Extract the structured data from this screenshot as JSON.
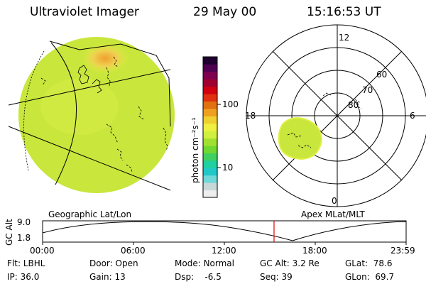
{
  "header": {
    "instrument": "Ultraviolet Imager",
    "date": "29 May 00",
    "time": "15:16:53 UT"
  },
  "colorbar": {
    "unit_label": "photon cm⁻²s⁻¹",
    "ticks": [
      "100",
      "10"
    ],
    "colors": [
      "#eeeeee",
      "#c8d8d8",
      "#70d8d8",
      "#20c8c8",
      "#20d0a0",
      "#40d060",
      "#70d830",
      "#a0e030",
      "#d0f040",
      "#f0f040",
      "#f0d030",
      "#f0a020",
      "#e07010",
      "#e03010",
      "#d00010",
      "#a00030",
      "#800050",
      "#500050",
      "#200030"
    ]
  },
  "geo_panel": {
    "label": "Geographic Lat/Lon",
    "fill_color": "#c8e63c"
  },
  "apex_panel": {
    "label": "Apex MLat/MLT",
    "lat_labels": [
      "60",
      "70",
      "80"
    ],
    "mlt_labels": [
      "12",
      "18",
      "6",
      "0"
    ]
  },
  "altitude_plot": {
    "y_label": "GC Alt",
    "y_ticks": [
      "9.0",
      "1.8"
    ],
    "x_ticks": [
      "00:00",
      "06:00",
      "12:00",
      "18:00",
      "23:59"
    ],
    "current_time_marker_hours": 15.28,
    "marker_color": "#e00000"
  },
  "status": {
    "row1": [
      {
        "key": "Flt:",
        "value": "LBHL"
      },
      {
        "key": "Door:",
        "value": "Open"
      },
      {
        "key": "Mode:",
        "value": "Normal"
      },
      {
        "key": "GC Alt:",
        "value": "3.2 Re"
      },
      {
        "key": "GLat:",
        "value": "78.6"
      }
    ],
    "row2": [
      {
        "key": "IP:",
        "value": "36.0"
      },
      {
        "key": "Gain:",
        "value": "13"
      },
      {
        "key": "Dsp:",
        "value": "-6.5"
      },
      {
        "key": "Seq:",
        "value": "39"
      },
      {
        "key": "GLon:",
        "value": "69.7"
      }
    ]
  }
}
